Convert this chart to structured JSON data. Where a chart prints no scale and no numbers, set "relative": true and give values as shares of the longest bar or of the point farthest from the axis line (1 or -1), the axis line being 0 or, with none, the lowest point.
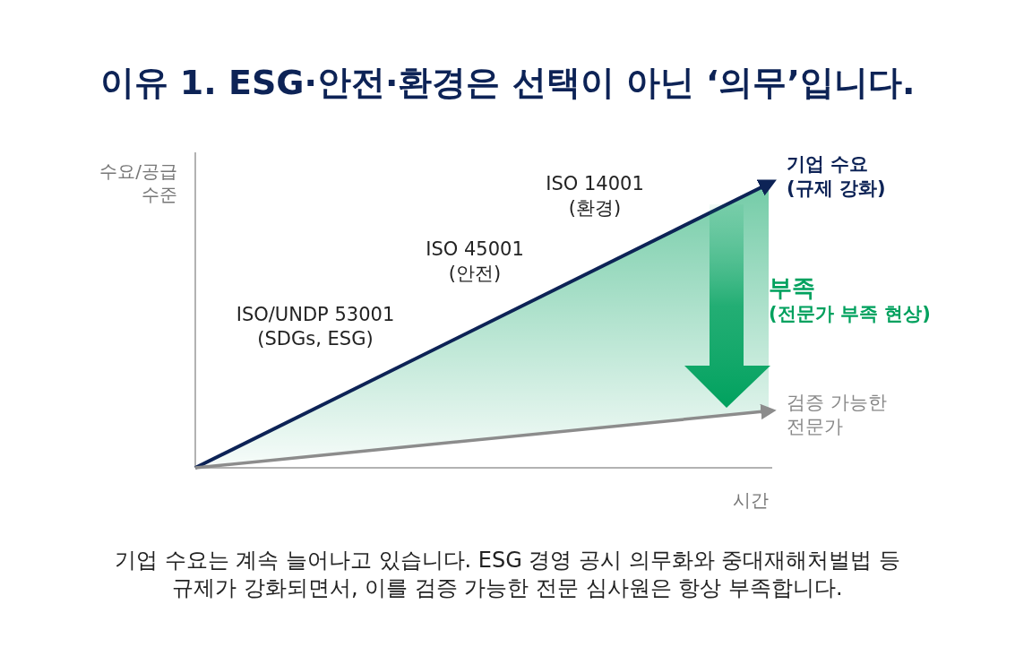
{
  "chart_data": {
    "type": "line",
    "relative": true,
    "title": "이유 1. ESG·안전·환경은 선택이 아닌 ‘의무’입니다.",
    "ylabel": "수요/공급\n수준",
    "xlabel": "시간",
    "categories": [
      null,
      null
    ],
    "series": [
      {
        "name": "기업 수요\n(규제 강화)",
        "color": "#0d2356",
        "values": [
          0,
          1
        ],
        "lower": [
          0,
          0.2
        ],
        "upper": [
          0,
          1
        ]
      },
      {
        "name": "검증 가능한\n전문가",
        "color": "#8c8c8c",
        "values": [
          0,
          0.2
        ]
      }
    ],
    "annotations": [
      "ISO/UNDP 53001\n(SDGs, ESG)",
      "ISO 45001\n(안전)",
      "ISO 14001\n(환경)",
      "부족\n(전문가 부족 현상)",
      "기업 수요는 계속 늘어나고 있습니다. ESG 경영 공시 의무화와 중대재해처벌법 등\n규제가 강화되면서, 이를 검증 가능한 전문 심사원은 항상 부족합니다."
    ],
    "marker": "none",
    "line_style": "solid"
  }
}
